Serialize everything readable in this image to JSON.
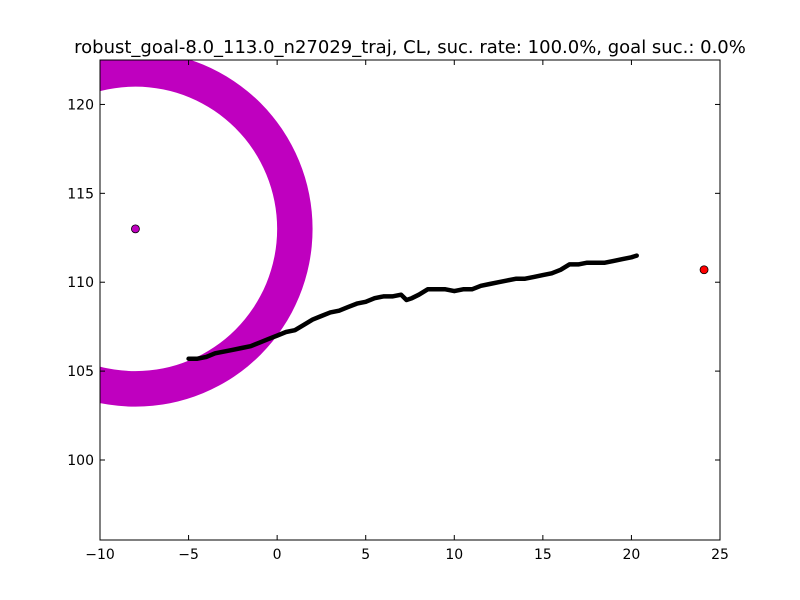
{
  "chart_data": {
    "type": "line",
    "title": "robust_goal-8.0_113.0_n27029_traj, CL, suc. rate: 100.0%, goal suc.: 0.0%",
    "xlabel": "",
    "ylabel": "",
    "xlim": [
      -10,
      25
    ],
    "ylim": [
      95.5,
      122.5
    ],
    "x_ticks": [
      -10,
      -5,
      0,
      5,
      10,
      15,
      20,
      25
    ],
    "y_ticks": [
      100,
      105,
      110,
      115,
      120
    ],
    "grid": false,
    "legend": "none",
    "goal_region": {
      "center": [
        -8.0,
        113.0
      ],
      "inner_radius": 8.0,
      "outer_radius": 10.0,
      "color": "#bf00bf"
    },
    "goal_point": {
      "x": -8.0,
      "y": 113.0,
      "color": "#bf00bf"
    },
    "end_point": {
      "x": 24.1,
      "y": 110.7,
      "color": "#ff0000"
    },
    "series": [
      {
        "color": "#000000",
        "x": [
          -5.0,
          -4.5,
          -4.0,
          -3.5,
          -3.0,
          -2.5,
          -2.0,
          -1.5,
          -1.0,
          -0.5,
          0.0,
          0.5,
          1.0,
          1.5,
          2.0,
          2.5,
          3.0,
          3.5,
          4.0,
          4.5,
          5.0,
          5.5,
          6.0,
          6.5,
          7.0,
          7.3,
          7.6,
          8.0,
          8.5,
          9.0,
          9.5,
          10.0,
          10.5,
          11.0,
          11.5,
          12.0,
          12.5,
          13.0,
          13.5,
          14.0,
          14.5,
          15.0,
          15.5,
          16.0,
          16.5,
          17.0,
          17.5,
          18.0,
          18.5,
          19.0,
          19.5,
          20.0,
          20.3
        ],
        "y": [
          105.7,
          105.7,
          105.8,
          106.0,
          106.1,
          106.2,
          106.3,
          106.4,
          106.6,
          106.8,
          107.0,
          107.2,
          107.3,
          107.6,
          107.9,
          108.1,
          108.3,
          108.4,
          108.6,
          108.8,
          108.9,
          109.1,
          109.2,
          109.2,
          109.3,
          109.0,
          109.1,
          109.3,
          109.6,
          109.6,
          109.6,
          109.5,
          109.6,
          109.6,
          109.8,
          109.9,
          110.0,
          110.1,
          110.2,
          110.2,
          110.3,
          110.4,
          110.5,
          110.7,
          111.0,
          111.0,
          111.1,
          111.1,
          111.1,
          111.2,
          111.3,
          111.4,
          111.5
        ]
      }
    ]
  }
}
